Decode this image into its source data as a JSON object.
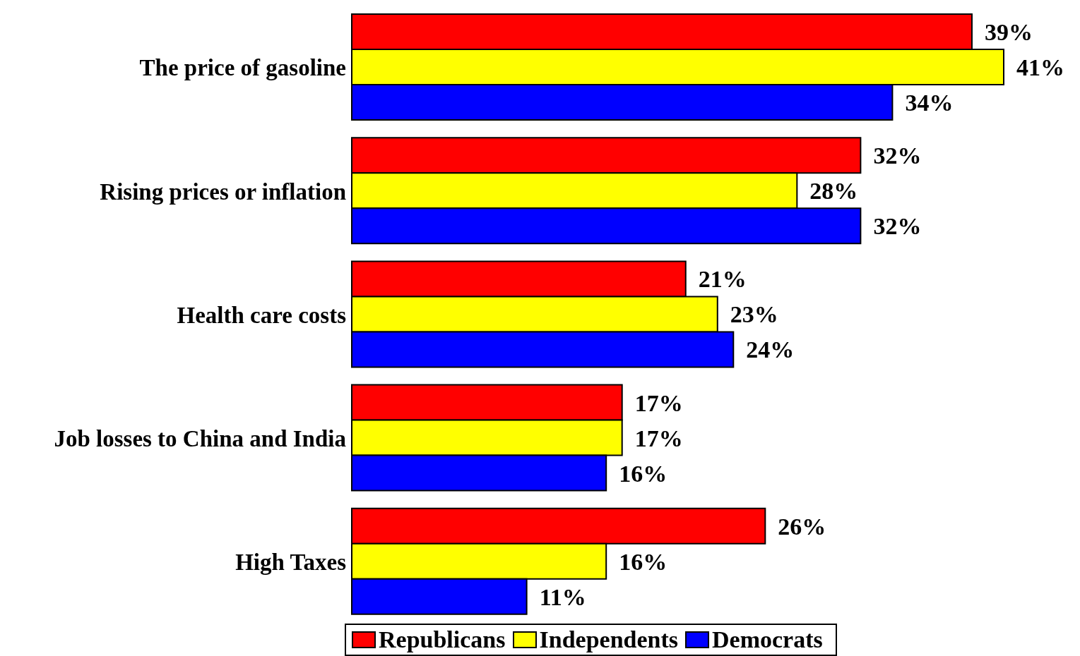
{
  "chart_data": {
    "type": "bar",
    "orientation": "horizontal",
    "categories": [
      "The price of gasoline",
      "Rising prices or inflation",
      "Health care costs",
      "Job losses to China and India",
      "High Taxes"
    ],
    "series": [
      {
        "name": "Republicans",
        "color": "#ff0000",
        "values": [
          39,
          32,
          21,
          17,
          26
        ],
        "value_labels": [
          "39%",
          "32%",
          "21%",
          "17%",
          "26%"
        ]
      },
      {
        "name": "Independents",
        "color": "#ffff00",
        "values": [
          41,
          28,
          23,
          17,
          16
        ],
        "value_labels": [
          "41%",
          "28%",
          "23%",
          "17%",
          "16%"
        ]
      },
      {
        "name": "Democrats",
        "color": "#0000ff",
        "values": [
          34,
          32,
          24,
          16,
          11
        ],
        "value_labels": [
          "34%",
          "32%",
          "24%",
          "16%",
          "11%"
        ]
      }
    ],
    "legend": "bottom"
  }
}
